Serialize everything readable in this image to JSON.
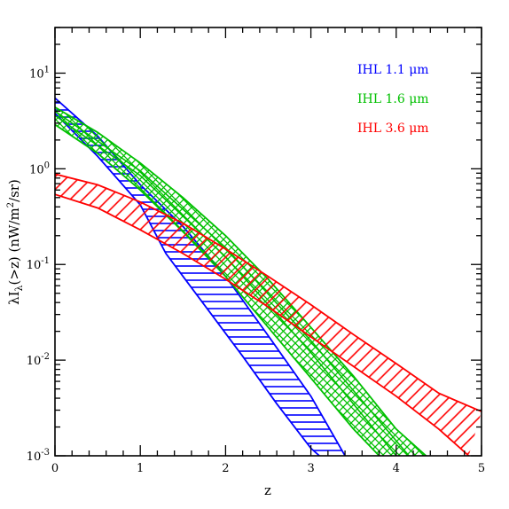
{
  "chart_data": {
    "type": "area",
    "xlabel": "z",
    "ylabel_parts": {
      "lambda": "λI",
      "subscript": "λ",
      "arg": "(>z)",
      "units_pre": " (nW/m",
      "units_sup": "2",
      "units_post": "/sr)"
    },
    "xlim": [
      0,
      5
    ],
    "ylim": [
      0.001,
      30
    ],
    "yscale": "log",
    "x_ticks": [
      {
        "value": 0,
        "label": "0"
      },
      {
        "value": 1,
        "label": "1"
      },
      {
        "value": 2,
        "label": "2"
      },
      {
        "value": 3,
        "label": "3"
      },
      {
        "value": 4,
        "label": "4"
      },
      {
        "value": 5,
        "label": "5"
      }
    ],
    "y_ticks": [
      {
        "value": 0.001,
        "base": "10",
        "exp": "-3"
      },
      {
        "value": 0.01,
        "base": "10",
        "exp": "-2"
      },
      {
        "value": 0.1,
        "base": "10",
        "exp": "-1"
      },
      {
        "value": 1,
        "base": "10",
        "exp": "0"
      },
      {
        "value": 10,
        "base": "10",
        "exp": "1"
      }
    ],
    "legend_position": "top-right",
    "series": [
      {
        "name": "IHL 1.1 μm",
        "color": "#0000ff",
        "hatch": "horizontal",
        "upper": {
          "x": [
            0,
            0.5,
            1.0,
            1.5,
            2.0,
            2.5,
            3.0,
            3.4
          ],
          "y": [
            5.5,
            2.2,
            0.68,
            0.25,
            0.075,
            0.018,
            0.0042,
            0.001
          ]
        },
        "lower": {
          "x": [
            0,
            0.5,
            1.0,
            1.3,
            1.8,
            2.2,
            2.6,
            3.0,
            3.1
          ],
          "y": [
            3.8,
            1.35,
            0.42,
            0.13,
            0.033,
            0.011,
            0.0035,
            0.0012,
            0.001
          ]
        }
      },
      {
        "name": "IHL 1.6 μm",
        "color": "#00c000",
        "hatch": "cross",
        "upper": {
          "x": [
            0,
            0.5,
            1.0,
            1.5,
            2.0,
            2.5,
            3.0,
            3.5,
            4.0,
            4.35
          ],
          "y": [
            4.4,
            2.4,
            1.15,
            0.5,
            0.2,
            0.07,
            0.022,
            0.0068,
            0.0019,
            0.001
          ]
        },
        "lower": {
          "x": [
            0,
            0.5,
            1.0,
            1.5,
            2.0,
            2.5,
            3.0,
            3.5,
            3.8
          ],
          "y": [
            2.9,
            1.45,
            0.6,
            0.22,
            0.075,
            0.022,
            0.0065,
            0.0019,
            0.001
          ]
        },
        "inner_lines": [
          {
            "x": [
              0,
              1.0,
              2.0,
              3.0,
              4.0
            ],
            "y": [
              3.6,
              0.85,
              0.12,
              0.012,
              0.001
            ]
          },
          {
            "x": [
              0,
              1.0,
              2.0,
              3.0,
              4.15
            ],
            "y": [
              4.0,
              0.95,
              0.15,
              0.016,
              0.001
            ]
          }
        ]
      },
      {
        "name": "IHL 3.6 μm",
        "color": "#ff0000",
        "hatch": "diagonal",
        "upper": {
          "x": [
            0,
            0.5,
            1.0,
            1.5,
            2.0,
            2.5,
            3.0,
            3.5,
            4.0,
            4.5,
            5.0
          ],
          "y": [
            0.88,
            0.68,
            0.45,
            0.27,
            0.145,
            0.075,
            0.038,
            0.0185,
            0.0092,
            0.0045,
            0.0029
          ]
        },
        "lower": {
          "x": [
            0,
            0.5,
            1.0,
            1.5,
            2.0,
            2.5,
            3.0,
            3.5,
            4.0,
            4.5,
            4.85
          ],
          "y": [
            0.54,
            0.39,
            0.23,
            0.13,
            0.07,
            0.036,
            0.0175,
            0.0086,
            0.0042,
            0.0019,
            0.001
          ]
        }
      }
    ]
  }
}
